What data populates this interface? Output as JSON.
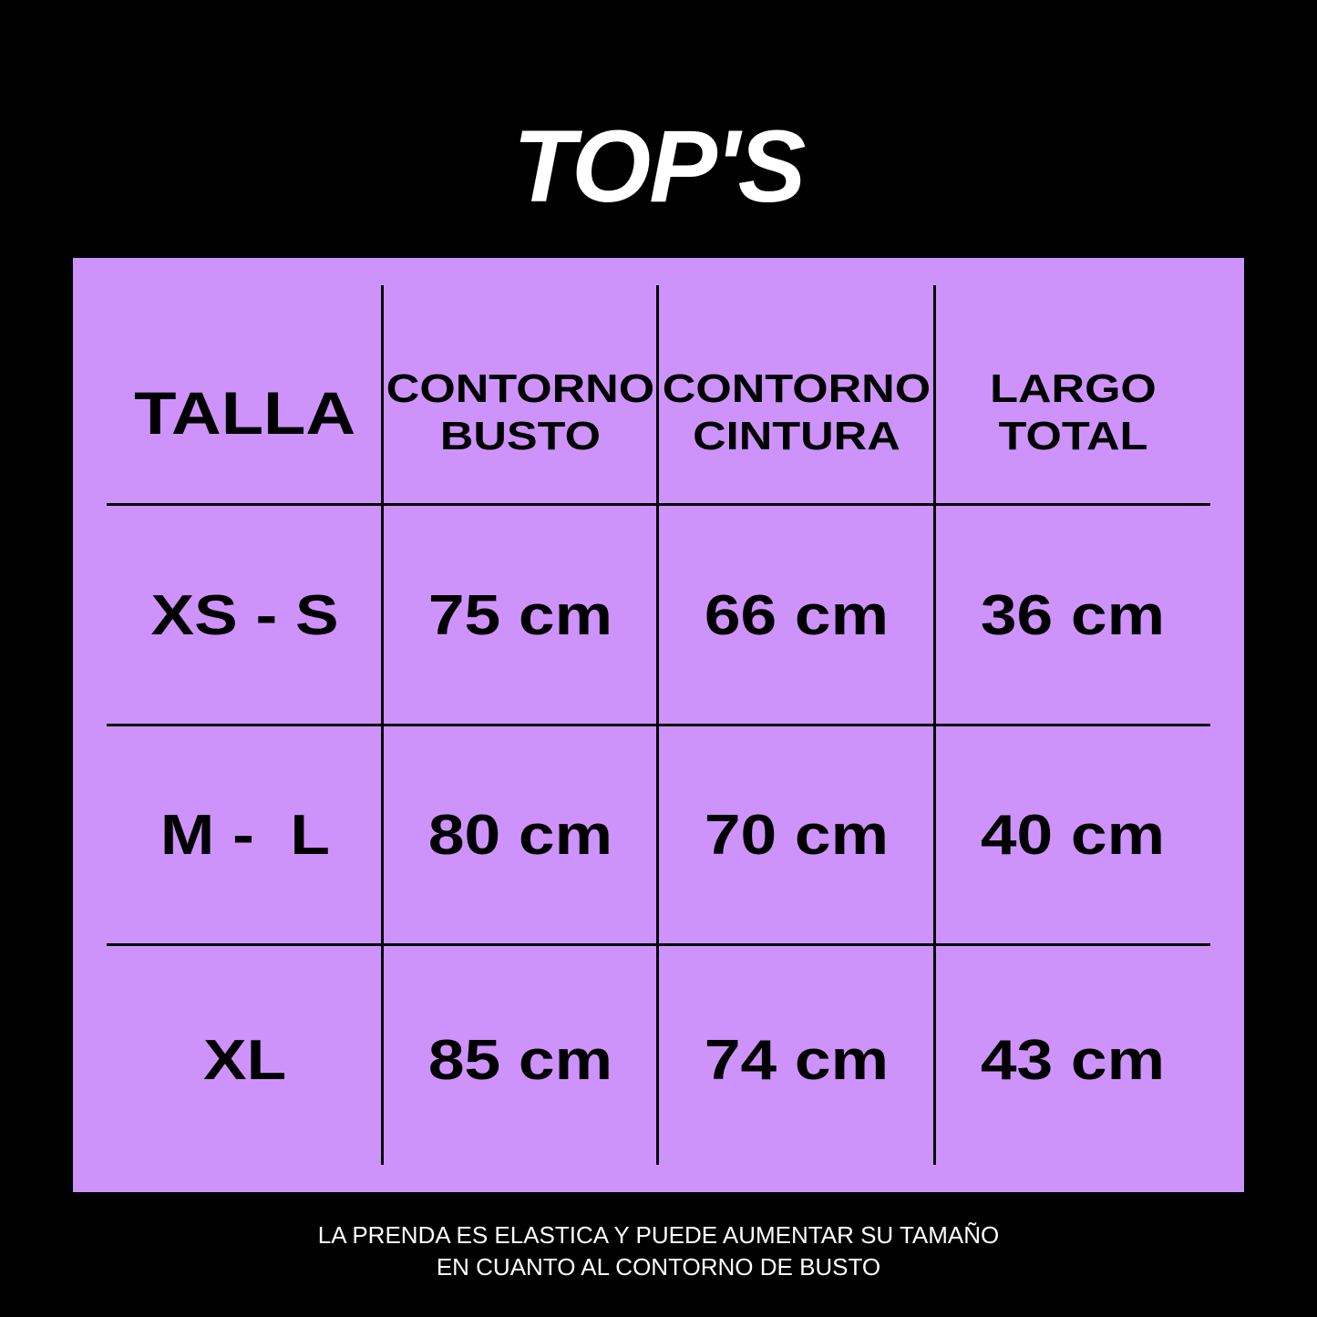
{
  "title": "TOP'S",
  "colors": {
    "background": "#000000",
    "panel": "#CE93FB",
    "text": "#000000"
  },
  "table": {
    "headers": [
      "TALLA",
      "CONTORNO\nBUSTO",
      "CONTORNO\nCINTURA",
      "LARGO\nTOTAL"
    ],
    "rows": [
      [
        "XS - S",
        "75 cm",
        "66 cm",
        "36 cm"
      ],
      [
        "M -  L",
        "80 cm",
        "70 cm",
        "40 cm"
      ],
      [
        "XL",
        "85 cm",
        "74 cm",
        "43 cm"
      ]
    ]
  },
  "footer": {
    "line1": "LA PRENDA ES ELASTICA Y PUEDE AUMENTAR SU TAMAÑO",
    "line2": "EN CUANTO AL CONTORNO DE BUSTO"
  }
}
